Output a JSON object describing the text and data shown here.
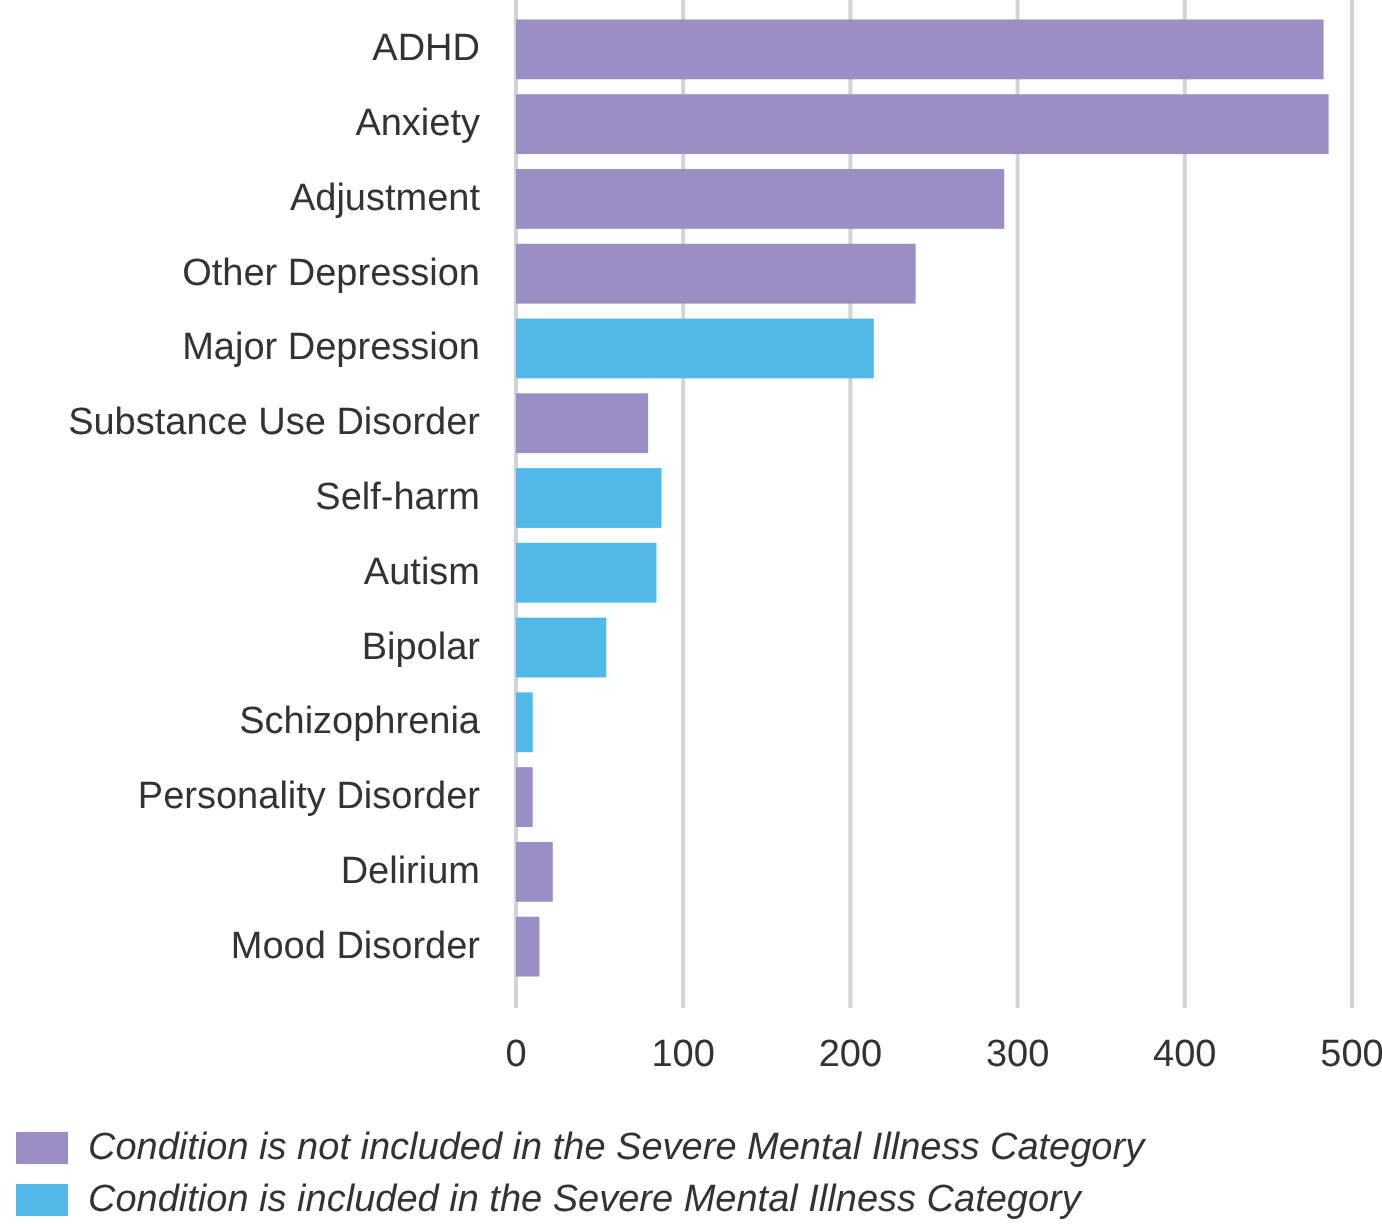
{
  "chart_data": {
    "type": "bar",
    "orientation": "horizontal",
    "stacked": true,
    "categories": [
      "ADHD",
      "Anxiety",
      "Adjustment",
      "Other Depression",
      "Major Depression",
      "Substance Use Disorder",
      "Self-harm",
      "Autism",
      "Bipolar",
      "Schizophrenia",
      "Personality Disorder",
      "Delirium",
      "Mood Disorder"
    ],
    "series": [
      {
        "name": "Condition is not included in the Severe Mental Illness Category",
        "color": "#9b8ec4",
        "values": [
          483,
          486,
          292,
          239,
          null,
          79,
          null,
          null,
          null,
          null,
          10,
          22,
          14
        ]
      },
      {
        "name": "Condition is included in the Severe Mental Illness Category",
        "color": "#52b8e8",
        "values": [
          null,
          null,
          null,
          null,
          214,
          null,
          87,
          84,
          54,
          10,
          null,
          null,
          null
        ]
      }
    ],
    "xlim": [
      0,
      500
    ],
    "xticks": [
      0,
      100,
      200,
      300,
      400,
      500
    ],
    "grid": "x",
    "legend": "bottom left"
  }
}
